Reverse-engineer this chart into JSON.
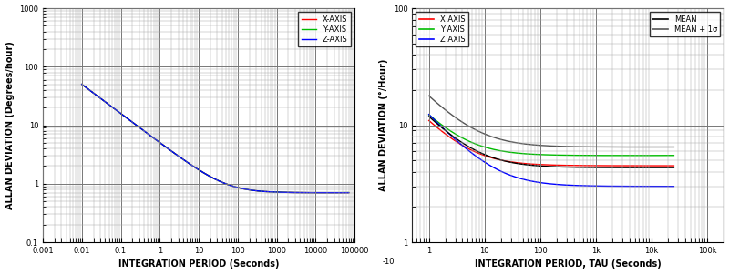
{
  "chart1": {
    "xlabel": "INTEGRATION PERIOD (Seconds)",
    "ylabel": "ALLAN DEVIATION (Degrees/hour)",
    "xlim": [
      0.001,
      100000
    ],
    "ylim": [
      0.1,
      1000
    ],
    "legend_labels": [
      "X-AXIS",
      "Y-AXIS",
      "Z-AXIS"
    ],
    "colors": [
      "#ff0000",
      "#00bb00",
      "#0000ff"
    ]
  },
  "chart2": {
    "xlabel": "INTEGRATION PERIOD, TAU (Seconds)",
    "ylabel": "ALLAN DEVIATION (°/Hour)",
    "ylim": [
      1,
      100
    ],
    "legend_labels_left": [
      "X AXIS",
      "Y AXIS",
      "Z AXIS"
    ],
    "legend_labels_right": [
      "MEAN",
      "MEAN + 1σ"
    ],
    "colors": [
      "#ff0000",
      "#00bb00",
      "#0000ff"
    ]
  },
  "background_color": "#ffffff"
}
